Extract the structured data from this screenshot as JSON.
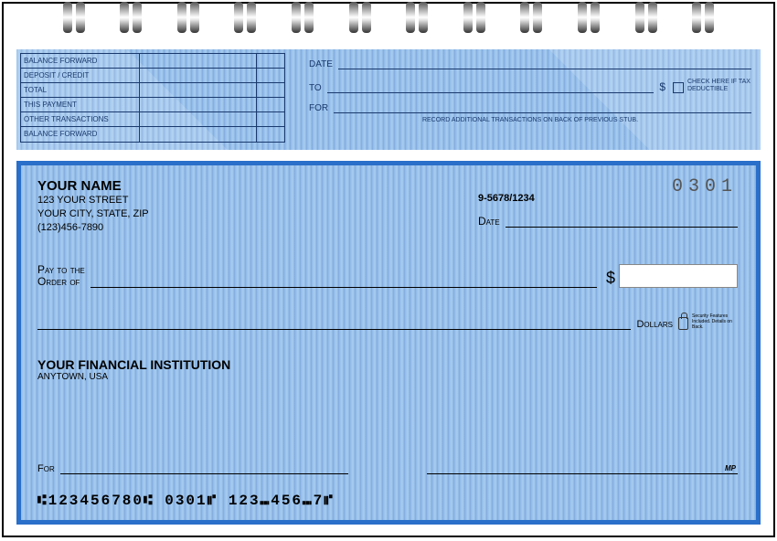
{
  "stub": {
    "ledger_labels": [
      "BALANCE FORWARD",
      "DEPOSIT / CREDIT",
      "TOTAL",
      "THIS PAYMENT",
      "OTHER TRANSACTIONS",
      "BALANCE FORWARD"
    ],
    "date_label": "DATE",
    "to_label": "TO",
    "for_label": "FOR",
    "tax_label": "CHECK HERE IF TAX DEDUCTIBLE",
    "note": "RECORD ADDITIONAL TRANSACTIONS ON BACK OF PREVIOUS STUB."
  },
  "check": {
    "payer": {
      "name": "YOUR NAME",
      "street": "123 YOUR STREET",
      "city": "YOUR CITY, STATE, ZIP",
      "phone": "(123)456-7890"
    },
    "routing_fraction": "9-5678/1234",
    "check_number": "0301",
    "date_label": "Date",
    "pay_label_1": "Pay to the",
    "pay_label_2": "Order of",
    "dollars_label": "Dollars",
    "security_text": "Security Features Included. Details on Back.",
    "bank": {
      "name": "YOUR FINANCIAL INSTITUTION",
      "city": "ANYTOWN, USA"
    },
    "for_label": "For",
    "mp": "MP",
    "micr": "⑆123456780⑆  0301⑈  123⑉456⑉7⑈"
  },
  "colors": {
    "check_bg": "#8fb8e8",
    "border": "#2a6fc9",
    "stub_text": "#1a3a6e"
  }
}
